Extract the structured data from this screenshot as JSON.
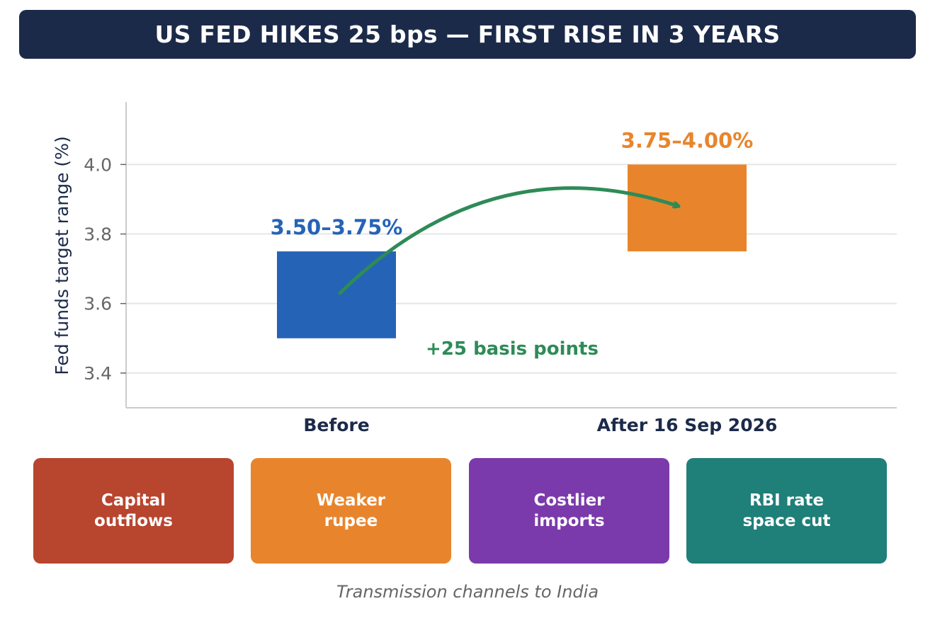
{
  "header": {
    "title": "US FED HIKES 25 bps — FIRST RISE IN 3 YEARS",
    "background_color": "#1c2a4a"
  },
  "chart_data": {
    "type": "bar",
    "title": "US FED HIKES 25 bps — FIRST RISE IN 3 YEARS",
    "ylabel": "Fed funds target range (%)",
    "xlabel": "",
    "categories": [
      "Before",
      "After 16 Sep 2026"
    ],
    "ranges": [
      {
        "low": 3.5,
        "high": 3.75,
        "label": "3.50–3.75%",
        "color": "#2563b6"
      },
      {
        "low": 3.75,
        "high": 4.0,
        "label": "3.75–4.00%",
        "color": "#e8852c"
      }
    ],
    "ylim": [
      3.3,
      4.18
    ],
    "yticks": [
      3.4,
      3.6,
      3.8,
      4.0
    ],
    "ytick_labels": [
      "3.4",
      "3.6",
      "3.8",
      "4.0"
    ],
    "grid": true,
    "annotation": {
      "text": "+25 basis points",
      "color": "#2e8b57",
      "arrow_from": {
        "category": 0,
        "y": 3.63
      },
      "arrow_to": {
        "category": 1,
        "y": 3.88
      }
    }
  },
  "channels": {
    "items": [
      {
        "label": "Capital\noutflows",
        "color": "#b8452e"
      },
      {
        "label": "Weaker\nrupee",
        "color": "#e8852c"
      },
      {
        "label": "Costlier\nimports",
        "color": "#7b3aab"
      },
      {
        "label": "RBI rate\nspace cut",
        "color": "#1f7f79"
      }
    ],
    "caption": "Transmission channels to India"
  }
}
